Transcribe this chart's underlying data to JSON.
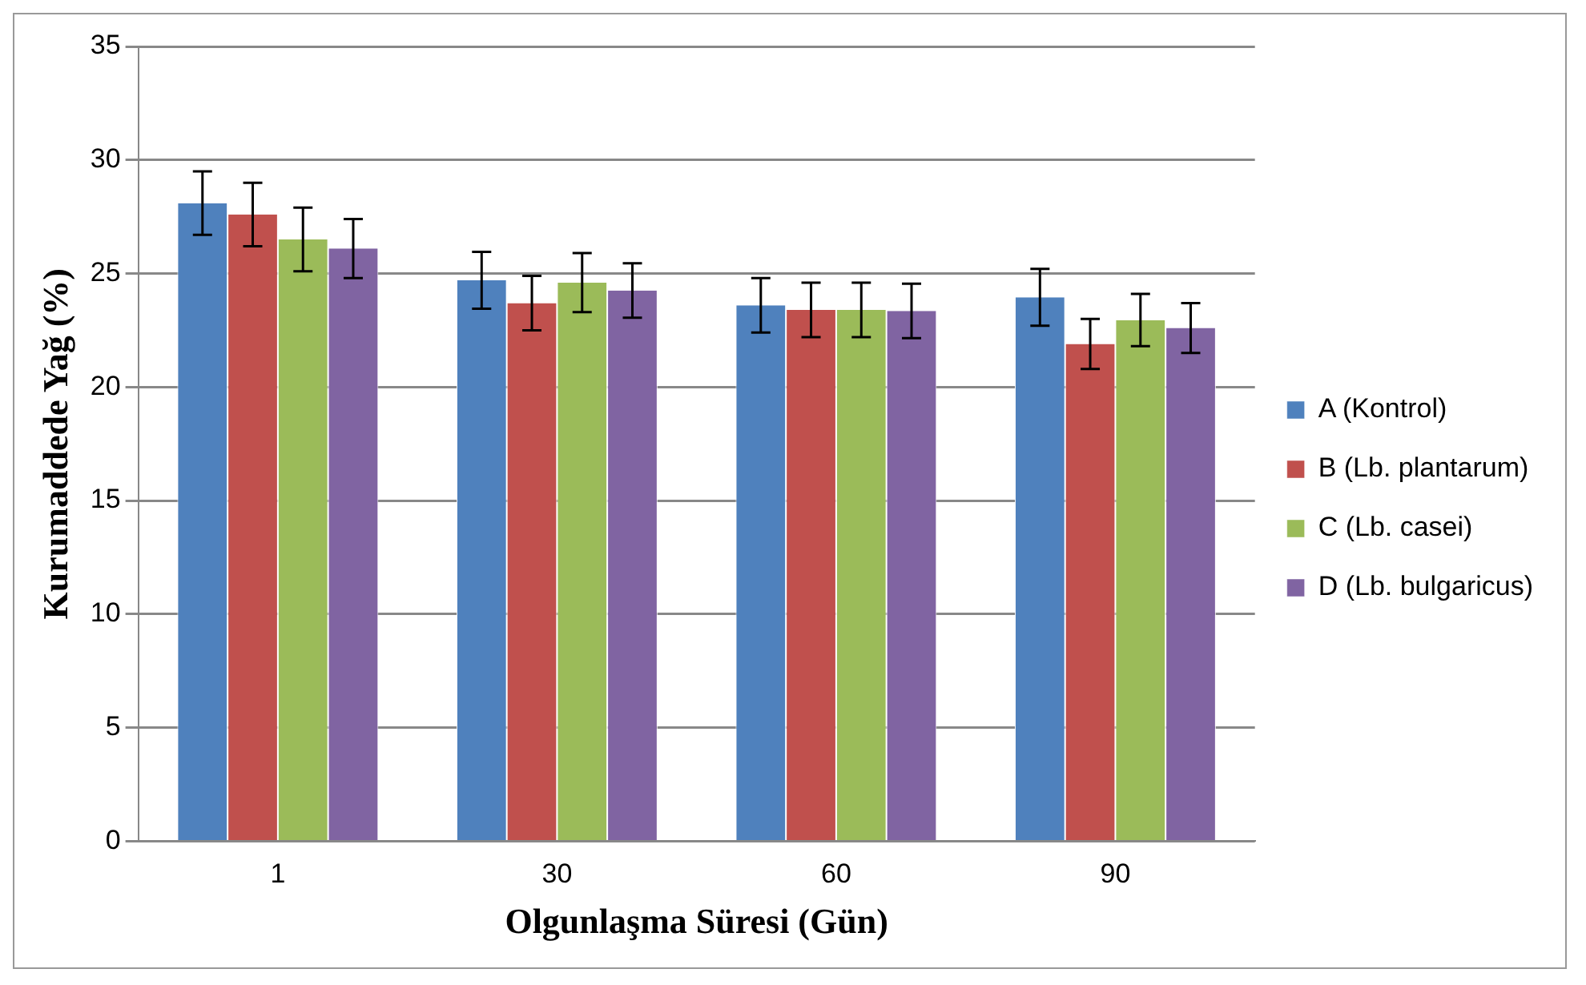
{
  "chart_data": {
    "type": "bar",
    "xlabel": "Olgunlaşma Süresi (Gün)",
    "ylabel": "Kurumaddede Yağ (%)",
    "categories": [
      "1",
      "30",
      "60",
      "90"
    ],
    "series": [
      {
        "name": "A (Kontrol)",
        "color": "#4f81bd",
        "values": [
          28.1,
          24.7,
          23.6,
          23.95
        ],
        "errors": [
          1.4,
          1.25,
          1.2,
          1.25
        ]
      },
      {
        "name": "B (Lb. plantarum)",
        "color": "#c0504d",
        "values": [
          27.6,
          23.7,
          23.4,
          21.9
        ],
        "errors": [
          1.4,
          1.2,
          1.2,
          1.1
        ]
      },
      {
        "name": "C (Lb. casei)",
        "color": "#9bbb59",
        "values": [
          26.5,
          24.6,
          23.4,
          22.95
        ],
        "errors": [
          1.4,
          1.3,
          1.2,
          1.15
        ]
      },
      {
        "name": "D (Lb. bulgaricus)",
        "color": "#8064a2",
        "values": [
          26.1,
          24.25,
          23.35,
          22.6
        ],
        "errors": [
          1.3,
          1.2,
          1.2,
          1.1
        ]
      }
    ],
    "ylim": [
      0,
      35
    ],
    "yticks": [
      0,
      5,
      10,
      15,
      20,
      25,
      30,
      35
    ],
    "grid": "y",
    "legend": "right"
  }
}
